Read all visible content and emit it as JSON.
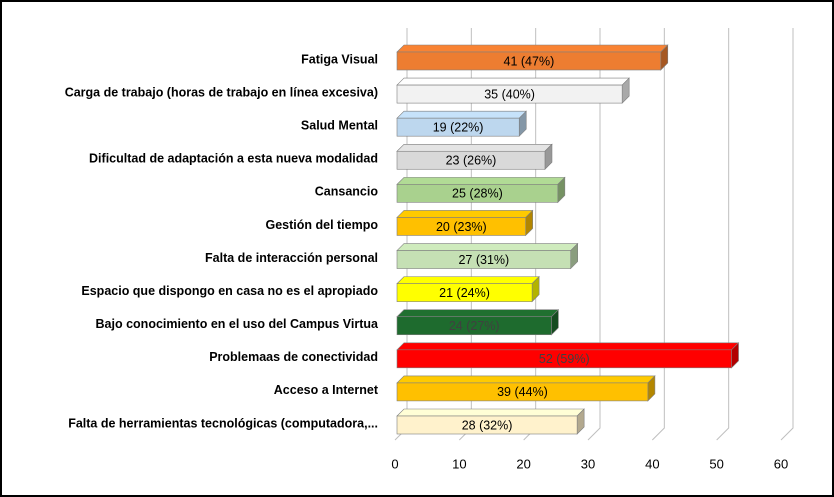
{
  "chart_data": {
    "type": "bar",
    "orientation": "horizontal",
    "categories": [
      "Fatiga Visual",
      "Carga de trabajo (horas de trabajo en línea excesiva)",
      "Salud Mental",
      "Dificultad de adaptación a esta nueva modalidad",
      "Cansancio",
      "Gestión del tiempo",
      "Falta de interacción personal",
      "Espacio que dispongo en casa no es el apropiado",
      "Bajo conocimiento en el uso del Campus Virtua",
      "Problemaas de conectividad",
      "Acceso a Internet",
      "Falta de herramientas tecnológicas (computadora,..."
    ],
    "values": [
      41,
      35,
      19,
      23,
      25,
      20,
      27,
      21,
      24,
      52,
      39,
      28
    ],
    "value_labels": [
      "41 (47%)",
      "35 (40%)",
      "19 (22%)",
      "23 (26%)",
      "25 (28%)",
      "20 (23%)",
      "27 (31%)",
      "21 (24%)",
      "24 (27%)",
      "52 (59%)",
      "39 (44%)",
      "28 (32%)"
    ],
    "colors": [
      "#ED7D31",
      "#F2F2F2",
      "#BDD7EE",
      "#D9D9D9",
      "#A9D18E",
      "#FFC000",
      "#C5E0B4",
      "#FFFF00",
      "#1E6B2E",
      "#FF0000",
      "#FFC000",
      "#FFF2CC"
    ],
    "xlim": [
      0,
      60
    ],
    "xticks": [
      0,
      10,
      20,
      30,
      40,
      50,
      60
    ],
    "grid": true
  }
}
